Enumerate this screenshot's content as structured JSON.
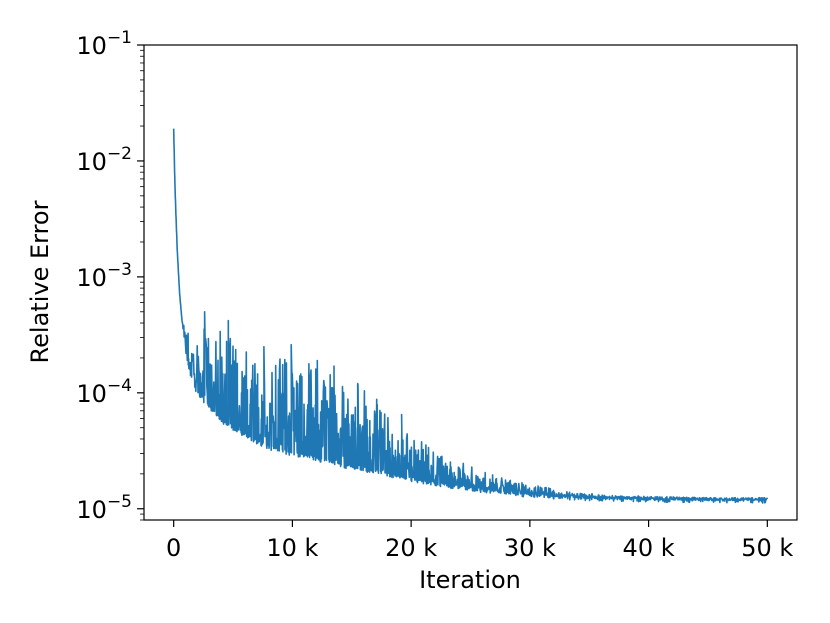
{
  "chart_data": {
    "type": "line",
    "title": "",
    "xlabel": "Iteration",
    "ylabel": "Relative Error",
    "xscale": "linear",
    "yscale": "log",
    "xlim": [
      -2500,
      52500
    ],
    "ylim": [
      8e-06,
      0.1
    ],
    "grid": false,
    "legend": "none",
    "line_color": "#1f77b4",
    "x_ticks": [
      {
        "value": 0,
        "label": "0"
      },
      {
        "value": 10000,
        "label": "10 k"
      },
      {
        "value": 20000,
        "label": "20 k"
      },
      {
        "value": 30000,
        "label": "30 k"
      },
      {
        "value": 40000,
        "label": "40 k"
      },
      {
        "value": 50000,
        "label": "50 k"
      }
    ],
    "y_ticks": [
      {
        "value": 1e-05,
        "base": "10",
        "exp": "−5"
      },
      {
        "value": 0.0001,
        "base": "10",
        "exp": "−4"
      },
      {
        "value": 0.001,
        "base": "10",
        "exp": "−3"
      },
      {
        "value": 0.01,
        "base": "10",
        "exp": "−2"
      },
      {
        "value": 0.1,
        "base": "10",
        "exp": "−1"
      }
    ],
    "series": [
      {
        "x": [
          0,
          50,
          100,
          200,
          300,
          500,
          700,
          1000,
          1500,
          2000,
          3000,
          4000,
          5000,
          6000,
          7000,
          8000,
          10000,
          12000,
          14000,
          16000,
          18000,
          20000,
          22000,
          24000,
          26000,
          28000,
          30000,
          33000,
          36000,
          40000,
          45000,
          50000
        ],
        "y": [
          0.019,
          0.011,
          0.0065,
          0.0032,
          0.0017,
          0.00072,
          0.00042,
          0.00025,
          0.00016,
          0.000125,
          0.0001,
          8.5e-05,
          7.2e-05,
          6.2e-05,
          5.5e-05,
          4.9e-05,
          4e-05,
          3.3e-05,
          2.8e-05,
          2.5e-05,
          2.2e-05,
          2e-05,
          1.75e-05,
          1.6e-05,
          1.5e-05,
          1.42e-05,
          1.35e-05,
          1.28e-05,
          1.24e-05,
          1.22e-05,
          1.2e-05,
          1.2e-05
        ],
        "noise_upper": [
          0.019,
          0.011,
          0.0065,
          0.0032,
          0.0017,
          0.00072,
          0.00045,
          0.00037,
          0.00035,
          0.0004,
          0.00045,
          0.00035,
          0.00034,
          0.00025,
          0.00022,
          0.00023,
          0.00022,
          0.00017,
          0.00015,
          0.00013,
          6.5e-05,
          4.8e-05,
          3.2e-05,
          2.6e-05,
          2.1e-05,
          1.8e-05,
          1.65e-05,
          1.42e-05,
          1.33e-05,
          1.28e-05,
          1.25e-05,
          1.25e-05
        ],
        "noise_lower": [
          0.019,
          0.011,
          0.0065,
          0.0032,
          0.0017,
          0.00072,
          0.0004,
          0.00022,
          0.00013,
          0.0001,
          7.5e-05,
          5.8e-05,
          5e-05,
          4.3e-05,
          3.8e-05,
          3.4e-05,
          3e-05,
          2.7e-05,
          2.4e-05,
          2.2e-05,
          2e-05,
          1.8e-05,
          1.65e-05,
          1.55e-05,
          1.45e-05,
          1.38e-05,
          1.32e-05,
          1.26e-05,
          1.22e-05,
          1.2e-05,
          1.18e-05,
          1.18e-05
        ],
        "spikes": [
          {
            "x": 2600,
            "y": 0.0005
          },
          {
            "x": 4600,
            "y": 0.00042
          },
          {
            "x": 7600,
            "y": 0.00025
          },
          {
            "x": 9900,
            "y": 0.00026
          },
          {
            "x": 12100,
            "y": 0.00019
          },
          {
            "x": 13500,
            "y": 0.00017
          },
          {
            "x": 15500,
            "y": 0.00012
          },
          {
            "x": 19200,
            "y": 6.5e-05
          }
        ]
      }
    ]
  }
}
